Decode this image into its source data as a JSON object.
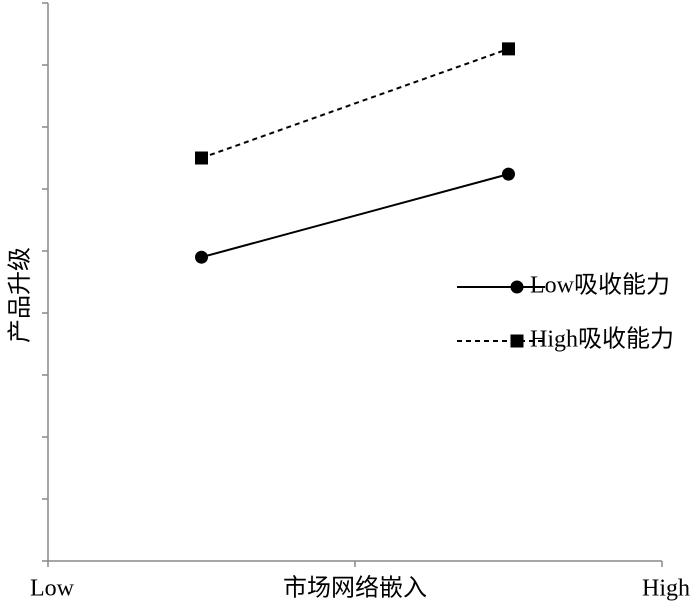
{
  "chart_data": {
    "type": "line",
    "x_label": "市场网络嵌入",
    "y_label": "产品升级",
    "x": [
      -1,
      1
    ],
    "xlim": [
      -2,
      2
    ],
    "xticks": [
      {
        "value": -2,
        "label": "Low"
      },
      {
        "value": 2,
        "label": "High"
      }
    ],
    "ylim": [
      0,
      9
    ],
    "yticks": [
      0,
      1,
      2,
      3,
      4,
      5,
      6,
      7,
      8,
      9
    ],
    "legend": "right",
    "series": [
      {
        "name": "Low吸收能力",
        "color": "#000000",
        "dash": "solid",
        "marker": "circle",
        "values": [
          4.9,
          6.24
        ]
      },
      {
        "name": "High吸收能力",
        "color": "#000000",
        "dash": "dashed",
        "marker": "square",
        "values": [
          6.5,
          8.26
        ]
      }
    ]
  }
}
